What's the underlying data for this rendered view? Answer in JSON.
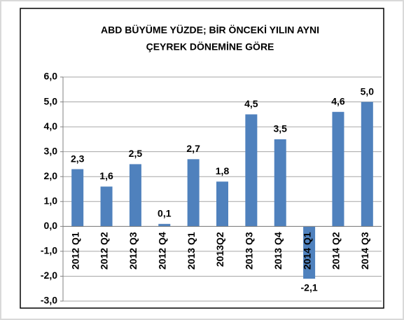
{
  "chart_data": {
    "type": "bar",
    "title": [
      "ABD BÜYÜME YÜZDE; BİR ÖNCEKİ YILIN AYNI",
      "ÇEYREK DÖNEMİNE GÖRE"
    ],
    "categories": [
      "2012 Q1",
      "2012 Q2",
      "2012 Q3",
      "2012 Q4",
      "2013 Q1",
      "2013Q2",
      "2013 Q3",
      "2013 Q4",
      "2014 Q1",
      "2014 Q2",
      "2014 Q3"
    ],
    "values": [
      2.3,
      1.6,
      2.5,
      0.1,
      2.7,
      1.8,
      4.5,
      3.5,
      -2.1,
      4.6,
      5.0
    ],
    "value_labels": [
      "2,3",
      "1,6",
      "2,5",
      "0,1",
      "2,7",
      "1,8",
      "4,5",
      "3,5",
      "-2,1",
      "4,6",
      "5,0"
    ],
    "color": "#4f81bd",
    "ylim": [
      -3,
      6
    ],
    "yticks": [
      {
        "value": -3,
        "label": "-3,0"
      },
      {
        "value": -2,
        "label": "-2,0"
      },
      {
        "value": -1,
        "label": "-1,0"
      },
      {
        "value": 0,
        "label": "0,0"
      },
      {
        "value": 1,
        "label": "1,0"
      },
      {
        "value": 2,
        "label": "2,0"
      },
      {
        "value": 3,
        "label": "3,0"
      },
      {
        "value": 4,
        "label": "4,0"
      },
      {
        "value": 5,
        "label": "5,0"
      },
      {
        "value": 6,
        "label": "6,0"
      }
    ],
    "grid": true
  }
}
